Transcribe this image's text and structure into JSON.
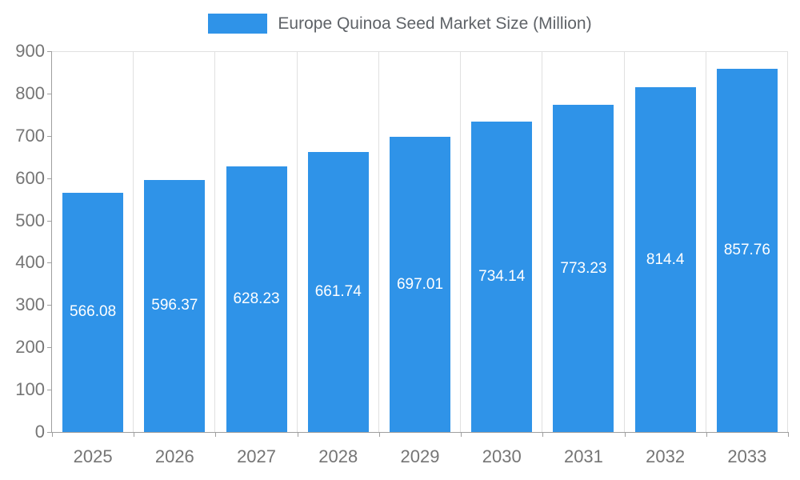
{
  "chart_data": {
    "type": "bar",
    "title": "Europe Quinoa Seed Market Size (Million)",
    "categories": [
      "2025",
      "2026",
      "2027",
      "2028",
      "2029",
      "2030",
      "2031",
      "2032",
      "2033"
    ],
    "values": [
      566.08,
      596.37,
      628.23,
      661.74,
      697.01,
      734.14,
      773.23,
      814.4,
      857.76
    ],
    "value_labels": [
      "566.08",
      "596.37",
      "628.23",
      "661.74",
      "697.01",
      "734.14",
      "773.23",
      "814.4",
      "857.76"
    ],
    "xlabel": "",
    "ylabel": "",
    "ylim": [
      0,
      900
    ],
    "ytick_step": 100,
    "ytick_labels": [
      "0",
      "100",
      "200",
      "300",
      "400",
      "500",
      "600",
      "700",
      "800",
      "900"
    ],
    "legend_position": "top-center",
    "grid": "vertical",
    "bar_label_position": "inside-center",
    "colors": {
      "bar": "#2F93E8",
      "bar_label": "#FFFFFF",
      "axis_line": "#9E9E9E",
      "gridline": "#E0E0E0",
      "tick_text": "#757575",
      "title_text": "#5F6368",
      "background": "#FFFFFF"
    }
  }
}
